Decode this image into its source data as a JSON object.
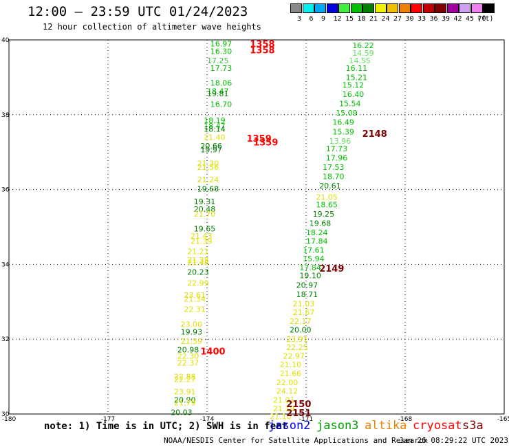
{
  "header": {
    "title": "12:00 — 23:59 UTC 01/24/2023",
    "subtitle": "12 hour collection of altimeter wave heights"
  },
  "colorbar": {
    "unit": "(ft)",
    "bins": [
      {
        "label": "3",
        "color": "#888888"
      },
      {
        "label": "6",
        "color": "#00f0f0"
      },
      {
        "label": "9",
        "color": "#00a8f0"
      },
      {
        "label": "12",
        "color": "#0000e0"
      },
      {
        "label": "15",
        "color": "#40f040"
      },
      {
        "label": "18",
        "color": "#00c000"
      },
      {
        "label": "21",
        "color": "#008000"
      },
      {
        "label": "24",
        "color": "#f0f000"
      },
      {
        "label": "27",
        "color": "#f0c000"
      },
      {
        "label": "30",
        "color": "#f08000"
      },
      {
        "label": "33",
        "color": "#ff0000"
      },
      {
        "label": "36",
        "color": "#c00000"
      },
      {
        "label": "39",
        "color": "#800000"
      },
      {
        "label": "42",
        "color": "#a000a0"
      },
      {
        "label": "45",
        "color": "#d0a0f0"
      },
      {
        "label": "70",
        "color": "#f080f0"
      },
      {
        "label": "",
        "color": "#000000"
      }
    ]
  },
  "chart_data": {
    "type": "scatter",
    "xlim": [
      -180,
      -165
    ],
    "ylim": [
      30,
      40
    ],
    "x_ticks": [
      "-180",
      "-177",
      "-174",
      "-171",
      "-168",
      "-165"
    ],
    "y_ticks": [
      "40",
      "38",
      "36",
      "34",
      "32",
      "30"
    ],
    "grid": true,
    "annotations": [
      {
        "text": "1358",
        "lon": -172.7,
        "lat": 39.9,
        "color": "#ff0000"
      },
      {
        "text": "1358",
        "lon": -172.7,
        "lat": 39.73,
        "color": "#ff0000"
      },
      {
        "text": "1359",
        "lon": -172.8,
        "lat": 37.37,
        "color": "#ff0000"
      },
      {
        "text": "1359",
        "lon": -172.6,
        "lat": 37.27,
        "color": "#ff0000"
      },
      {
        "text": "1400",
        "lon": -174.2,
        "lat": 31.68,
        "color": "#ff0000"
      },
      {
        "text": "2148",
        "lon": -169.3,
        "lat": 37.5,
        "color": "#800000"
      },
      {
        "text": "2149",
        "lon": -170.6,
        "lat": 33.9,
        "color": "#800000"
      },
      {
        "text": "2150",
        "lon": -171.6,
        "lat": 30.28,
        "color": "#800000"
      },
      {
        "text": "2151",
        "lon": -171.6,
        "lat": 30.04,
        "color": "#800000"
      }
    ],
    "series": [
      {
        "name": "jason3",
        "points": [
          {
            "lon": -173.9,
            "lat": 39.9,
            "v": "16.97",
            "c": "#00c000"
          },
          {
            "lon": -173.9,
            "lat": 39.7,
            "v": "16.30",
            "c": "#00c000"
          },
          {
            "lon": -174.0,
            "lat": 39.45,
            "v": "17.25",
            "c": "#40c040"
          },
          {
            "lon": -173.9,
            "lat": 39.25,
            "v": "17.73",
            "c": "#00c000"
          },
          {
            "lon": -173.9,
            "lat": 38.85,
            "v": "18.06",
            "c": "#00c000"
          },
          {
            "lon": -174.0,
            "lat": 38.63,
            "v": "18.47",
            "c": "#00c000"
          },
          {
            "lon": -174.0,
            "lat": 38.57,
            "v": "19.81",
            "c": "#008000"
          },
          {
            "lon": -173.9,
            "lat": 38.28,
            "v": "16.70",
            "c": "#00c000"
          },
          {
            "lon": -174.1,
            "lat": 37.85,
            "v": "18.19",
            "c": "#00c000"
          },
          {
            "lon": -174.1,
            "lat": 37.7,
            "v": "18.47",
            "c": "#00c000"
          },
          {
            "lon": -174.1,
            "lat": 37.62,
            "v": "18.14",
            "c": "#008000"
          },
          {
            "lon": -174.1,
            "lat": 37.4,
            "v": "21.40",
            "c": "#e0e000"
          },
          {
            "lon": -174.2,
            "lat": 37.17,
            "v": "20.66",
            "c": "#008000"
          },
          {
            "lon": -174.2,
            "lat": 37.07,
            "v": "19.97",
            "c": "#008000"
          },
          {
            "lon": -174.3,
            "lat": 36.7,
            "v": "21.30",
            "c": "#e0e000"
          },
          {
            "lon": -174.3,
            "lat": 36.6,
            "v": "21.56",
            "c": "#e0e000"
          },
          {
            "lon": -174.3,
            "lat": 36.27,
            "v": "21.24",
            "c": "#e0e000"
          },
          {
            "lon": -174.3,
            "lat": 36.02,
            "v": "19.68",
            "c": "#008000"
          },
          {
            "lon": -174.4,
            "lat": 35.68,
            "v": "19.31",
            "c": "#008000"
          },
          {
            "lon": -174.4,
            "lat": 35.48,
            "v": "20.48",
            "c": "#008000"
          },
          {
            "lon": -174.4,
            "lat": 35.35,
            "v": "21.70",
            "c": "#e0e000"
          },
          {
            "lon": -174.4,
            "lat": 34.95,
            "v": "19.65",
            "c": "#008000"
          },
          {
            "lon": -174.5,
            "lat": 34.76,
            "v": "21.43",
            "c": "#e0e000"
          },
          {
            "lon": -174.5,
            "lat": 34.62,
            "v": "21.39",
            "c": "#e0e000"
          },
          {
            "lon": -174.6,
            "lat": 34.35,
            "v": "21.21",
            "c": "#e0e000"
          },
          {
            "lon": -174.6,
            "lat": 34.12,
            "v": "21.38",
            "c": "#e0e000"
          },
          {
            "lon": -174.6,
            "lat": 34.05,
            "v": "21.48",
            "c": "#e0e000"
          },
          {
            "lon": -174.6,
            "lat": 33.8,
            "v": "20.23",
            "c": "#008000"
          },
          {
            "lon": -174.6,
            "lat": 33.5,
            "v": "22.99",
            "c": "#e0e000"
          },
          {
            "lon": -174.7,
            "lat": 33.18,
            "v": "23.61",
            "c": "#e0e000"
          },
          {
            "lon": -174.7,
            "lat": 33.08,
            "v": "21.34",
            "c": "#e0e000"
          },
          {
            "lon": -174.7,
            "lat": 32.8,
            "v": "22.31",
            "c": "#e0e000"
          },
          {
            "lon": -174.8,
            "lat": 32.4,
            "v": "23.00",
            "c": "#e0e000"
          },
          {
            "lon": -174.8,
            "lat": 32.2,
            "v": "19.93",
            "c": "#008000"
          },
          {
            "lon": -174.8,
            "lat": 31.95,
            "v": "21.59",
            "c": "#e0e000"
          },
          {
            "lon": -174.9,
            "lat": 31.72,
            "v": "20.98",
            "c": "#008000"
          },
          {
            "lon": -174.9,
            "lat": 31.55,
            "v": "22.30",
            "c": "#e0e000"
          },
          {
            "lon": -174.9,
            "lat": 31.37,
            "v": "22.37",
            "c": "#e0e000"
          },
          {
            "lon": -175.0,
            "lat": 31.0,
            "v": "22.88",
            "c": "#e0e000"
          },
          {
            "lon": -175.0,
            "lat": 30.93,
            "v": "22.27",
            "c": "#e0e000"
          },
          {
            "lon": -175.0,
            "lat": 30.6,
            "v": "23.91",
            "c": "#e0e000"
          },
          {
            "lon": -175.0,
            "lat": 30.38,
            "v": "20.90",
            "c": "#008000"
          },
          {
            "lon": -175.0,
            "lat": 30.3,
            "v": "21.79",
            "c": "#e0e000"
          },
          {
            "lon": -175.1,
            "lat": 30.05,
            "v": "20.03",
            "c": "#008000"
          }
        ]
      },
      {
        "name": "cryosat",
        "points": [
          {
            "lon": -169.6,
            "lat": 39.85,
            "v": "16.22",
            "c": "#00c000"
          },
          {
            "lon": -169.6,
            "lat": 39.65,
            "v": "14.59",
            "c": "#60e060"
          },
          {
            "lon": -169.7,
            "lat": 39.45,
            "v": "14.55",
            "c": "#60e060"
          },
          {
            "lon": -169.8,
            "lat": 39.25,
            "v": "16.11",
            "c": "#00c000"
          },
          {
            "lon": -169.8,
            "lat": 39.0,
            "v": "15.21",
            "c": "#00c000"
          },
          {
            "lon": -169.9,
            "lat": 38.8,
            "v": "15.12",
            "c": "#00c000"
          },
          {
            "lon": -169.9,
            "lat": 38.55,
            "v": "16.40",
            "c": "#00c000"
          },
          {
            "lon": -170.0,
            "lat": 38.3,
            "v": "15.54",
            "c": "#00c000"
          },
          {
            "lon": -170.1,
            "lat": 38.05,
            "v": "15.09",
            "c": "#00c000"
          },
          {
            "lon": -170.2,
            "lat": 37.8,
            "v": "16.49",
            "c": "#00c000"
          },
          {
            "lon": -170.2,
            "lat": 37.55,
            "v": "15.39",
            "c": "#00c000"
          },
          {
            "lon": -170.3,
            "lat": 37.3,
            "v": "13.96",
            "c": "#60e060"
          },
          {
            "lon": -170.4,
            "lat": 37.1,
            "v": "17.73",
            "c": "#00c000"
          },
          {
            "lon": -170.4,
            "lat": 36.85,
            "v": "17.96",
            "c": "#00c000"
          },
          {
            "lon": -170.5,
            "lat": 36.6,
            "v": "17.53",
            "c": "#00c000"
          },
          {
            "lon": -170.5,
            "lat": 36.35,
            "v": "18.70",
            "c": "#00c000"
          },
          {
            "lon": -170.6,
            "lat": 36.1,
            "v": "20.61",
            "c": "#008000"
          },
          {
            "lon": -170.7,
            "lat": 35.8,
            "v": "21.05",
            "c": "#e0e000"
          },
          {
            "lon": -170.7,
            "lat": 35.6,
            "v": "18.65",
            "c": "#00c000"
          },
          {
            "lon": -170.8,
            "lat": 35.35,
            "v": "19.25",
            "c": "#008000"
          },
          {
            "lon": -170.9,
            "lat": 35.1,
            "v": "19.68",
            "c": "#008000"
          },
          {
            "lon": -171.0,
            "lat": 34.85,
            "v": "18.24",
            "c": "#00c000"
          },
          {
            "lon": -171.0,
            "lat": 34.62,
            "v": "17.84",
            "c": "#00c000"
          },
          {
            "lon": -171.1,
            "lat": 34.38,
            "v": "17.61",
            "c": "#00c000"
          },
          {
            "lon": -171.1,
            "lat": 34.15,
            "v": "15.94",
            "c": "#00c000"
          },
          {
            "lon": -171.2,
            "lat": 33.92,
            "v": "17.84",
            "c": "#00c000"
          },
          {
            "lon": -171.2,
            "lat": 33.7,
            "v": "19.10",
            "c": "#008000"
          },
          {
            "lon": -171.3,
            "lat": 33.45,
            "v": "20.97",
            "c": "#008000"
          },
          {
            "lon": -171.3,
            "lat": 33.2,
            "v": "18.71",
            "c": "#008000"
          },
          {
            "lon": -171.4,
            "lat": 32.95,
            "v": "21.03",
            "c": "#e0e000"
          },
          {
            "lon": -171.4,
            "lat": 32.72,
            "v": "21.67",
            "c": "#e0e000"
          },
          {
            "lon": -171.5,
            "lat": 32.48,
            "v": "22.17",
            "c": "#e0e000"
          },
          {
            "lon": -171.5,
            "lat": 32.25,
            "v": "20.00",
            "c": "#008000"
          },
          {
            "lon": -171.6,
            "lat": 32.0,
            "v": "23.91",
            "c": "#e0e000"
          },
          {
            "lon": -171.6,
            "lat": 31.78,
            "v": "22.25",
            "c": "#e0e000"
          },
          {
            "lon": -171.7,
            "lat": 31.55,
            "v": "22.97",
            "c": "#e0e000"
          },
          {
            "lon": -171.8,
            "lat": 31.32,
            "v": "21.10",
            "c": "#e0e000"
          },
          {
            "lon": -171.8,
            "lat": 31.08,
            "v": "21.66",
            "c": "#e0e000"
          },
          {
            "lon": -171.9,
            "lat": 30.85,
            "v": "22.00",
            "c": "#e0e000"
          },
          {
            "lon": -171.9,
            "lat": 30.62,
            "v": "24.12",
            "c": "#e0e000"
          },
          {
            "lon": -172.0,
            "lat": 30.38,
            "v": "21.01",
            "c": "#e0e000"
          },
          {
            "lon": -172.0,
            "lat": 30.15,
            "v": "21.19",
            "c": "#e0e000"
          },
          {
            "lon": -172.1,
            "lat": 29.94,
            "v": "21.10",
            "c": "#e0e000"
          }
        ]
      }
    ]
  },
  "footer": {
    "note": "note: 1) Time is in UTC; 2) SWH is in feet",
    "legend": [
      {
        "label": "jason2",
        "color": "#0000e0"
      },
      {
        "label": "jason3",
        "color": "#00a000"
      },
      {
        "label": "altika",
        "color": "#f08000"
      },
      {
        "label": "cryosat",
        "color": "#ff0000"
      },
      {
        "label": "s3a",
        "color": "#800000"
      }
    ],
    "credit": "NOAA/NESDIS Center for Satellite Applications and Research",
    "timestamp": "Jan 26 08:29:22 UTC 2023"
  }
}
